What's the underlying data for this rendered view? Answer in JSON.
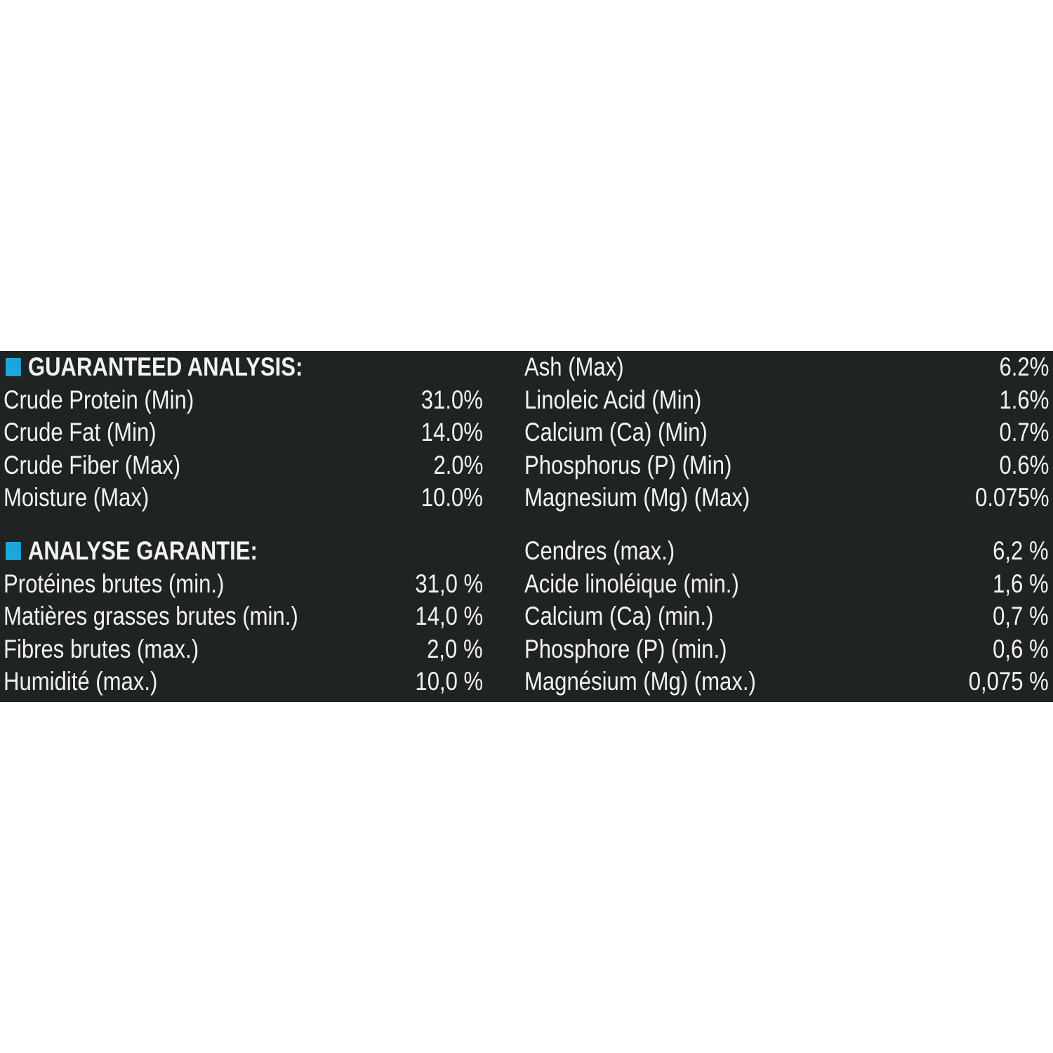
{
  "accent_color": "#1ba6dc",
  "sections": [
    {
      "heading": "GUARANTEED ANALYSIS:",
      "left": [
        {
          "label": "Crude Protein (Min)",
          "value": "31.0%"
        },
        {
          "label": "Crude Fat (Min)",
          "value": "14.0%"
        },
        {
          "label": "Crude Fiber (Max)",
          "value": "2.0%"
        },
        {
          "label": "Moisture (Max)",
          "value": "10.0%"
        }
      ],
      "right": [
        {
          "label": "Ash (Max)",
          "value": "6.2%"
        },
        {
          "label": "Linoleic Acid (Min)",
          "value": "1.6%"
        },
        {
          "label": "Calcium (Ca) (Min)",
          "value": "0.7%"
        },
        {
          "label": "Phosphorus (P) (Min)",
          "value": "0.6%"
        },
        {
          "label": "Magnesium (Mg) (Max)",
          "value": "0.075%"
        }
      ]
    },
    {
      "heading": "ANALYSE GARANTIE:",
      "left": [
        {
          "label": "Protéines brutes (min.)",
          "value": "31,0 %"
        },
        {
          "label": "Matières grasses brutes (min.)",
          "value": "14,0 %"
        },
        {
          "label": "Fibres brutes (max.)",
          "value": "2,0 %"
        },
        {
          "label": "Humidité (max.)",
          "value": "10,0 %"
        }
      ],
      "right": [
        {
          "label": "Cendres (max.)",
          "value": "6,2 %"
        },
        {
          "label": "Acide linoléique (min.)",
          "value": "1,6 %"
        },
        {
          "label": "Calcium (Ca) (min.)",
          "value": "0,7 %"
        },
        {
          "label": "Phosphore (P) (min.)",
          "value": "0,6 %"
        },
        {
          "label": "Magnésium (Mg) (max.)",
          "value": "0,075 %"
        }
      ]
    }
  ]
}
